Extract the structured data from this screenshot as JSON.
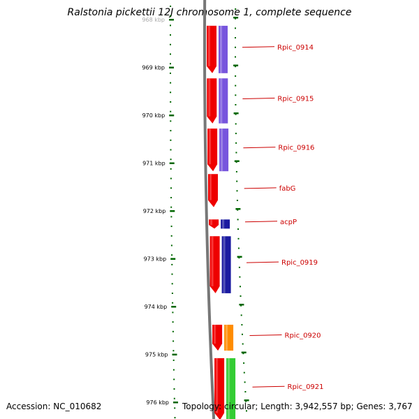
{
  "title": "Ralstonia pickettii 12J chromosome 1, complete sequence",
  "footer": {
    "accession": "Accession: NC_010682",
    "stats": "Topology: circular; Length: 3,942,557 bp; Genes: 3,767"
  },
  "ticks": [
    {
      "label": "968 kbp",
      "kbp": 968
    },
    {
      "label": "969 kbp",
      "kbp": 969
    },
    {
      "label": "970 kbp",
      "kbp": 970
    },
    {
      "label": "971 kbp",
      "kbp": 971
    },
    {
      "label": "972 kbp",
      "kbp": 972
    },
    {
      "label": "973 kbp",
      "kbp": 973
    },
    {
      "label": "974 kbp",
      "kbp": 974
    },
    {
      "label": "975 kbp",
      "kbp": 975
    },
    {
      "label": "976 kbp",
      "kbp": 976
    }
  ],
  "genes": [
    {
      "name": "Rpic_0914",
      "start_kbp": 968.1,
      "end_kbp": 969.15,
      "strand": "-",
      "cds_color": "#7755dd"
    },
    {
      "name": "Rpic_0915",
      "start_kbp": 969.2,
      "end_kbp": 970.2,
      "strand": "-",
      "cds_color": "#7755dd"
    },
    {
      "name": "Rpic_0916",
      "start_kbp": 970.25,
      "end_kbp": 971.2,
      "strand": "-",
      "cds_color": "#7755dd"
    },
    {
      "name": "fabG",
      "start_kbp": 971.2,
      "end_kbp": 971.95,
      "strand": "-",
      "cds_color": null
    },
    {
      "name": "acpP",
      "start_kbp": 972.15,
      "end_kbp": 972.4,
      "strand": "-",
      "cds_color": "#1a1aa0"
    },
    {
      "name": "Rpic_0919",
      "start_kbp": 972.5,
      "end_kbp": 973.75,
      "strand": "-",
      "cds_color": "#1a1aa0"
    },
    {
      "name": "Rpic_0920",
      "start_kbp": 974.35,
      "end_kbp": 974.95,
      "strand": "-",
      "cds_color": "#ff8c00"
    },
    {
      "name": "Rpic_0921",
      "start_kbp": 975.05,
      "end_kbp": 976.4,
      "strand": "-",
      "cds_color": "#33cc33"
    }
  ],
  "colors": {
    "backbone": "#777777",
    "gene": "#ee0000",
    "ticks": "#006600",
    "label_line": "#cc0000",
    "label_text": "#cc0000"
  }
}
